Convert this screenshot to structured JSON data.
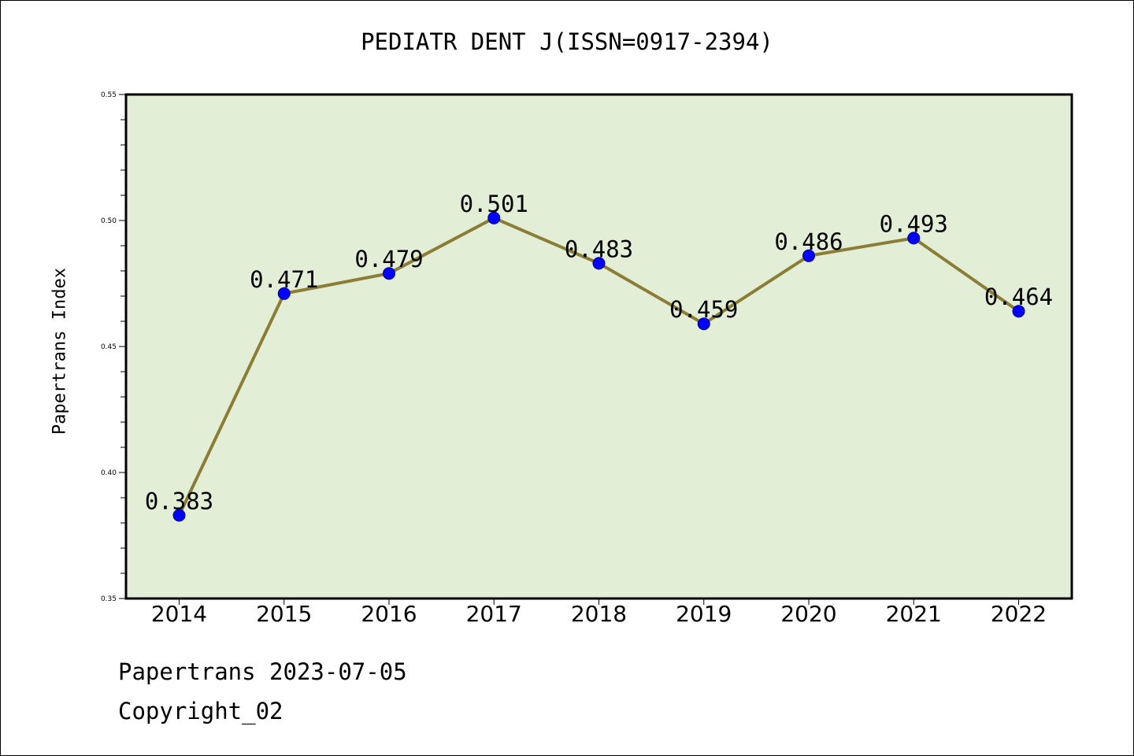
{
  "chart_data": {
    "type": "line",
    "title": "PEDIATR DENT J(ISSN=0917-2394)",
    "xlabel": "",
    "ylabel": "Papertrans Index",
    "categories": [
      "2014",
      "2015",
      "2016",
      "2017",
      "2018",
      "2019",
      "2020",
      "2021",
      "2022"
    ],
    "series": [
      {
        "values": [
          0.383,
          0.471,
          0.479,
          0.501,
          0.483,
          0.459,
          0.486,
          0.493,
          0.464
        ],
        "labels": [
          "0.383",
          "0.471",
          "0.479",
          "0.501",
          "0.483",
          "0.459",
          "0.486",
          "0.493",
          "0.464"
        ]
      }
    ],
    "ylim": [
      0.35,
      0.55
    ],
    "yticks": [
      "0.35",
      "0.40",
      "0.45",
      "0.50",
      "0.55"
    ],
    "grid": false,
    "colors": {
      "plot_background": "#e2efd6",
      "line": "#8b7d35",
      "marker": "#0000ff"
    }
  },
  "footer": {
    "line1": "Papertrans 2023-07-05",
    "line2": "Copyright_02"
  }
}
